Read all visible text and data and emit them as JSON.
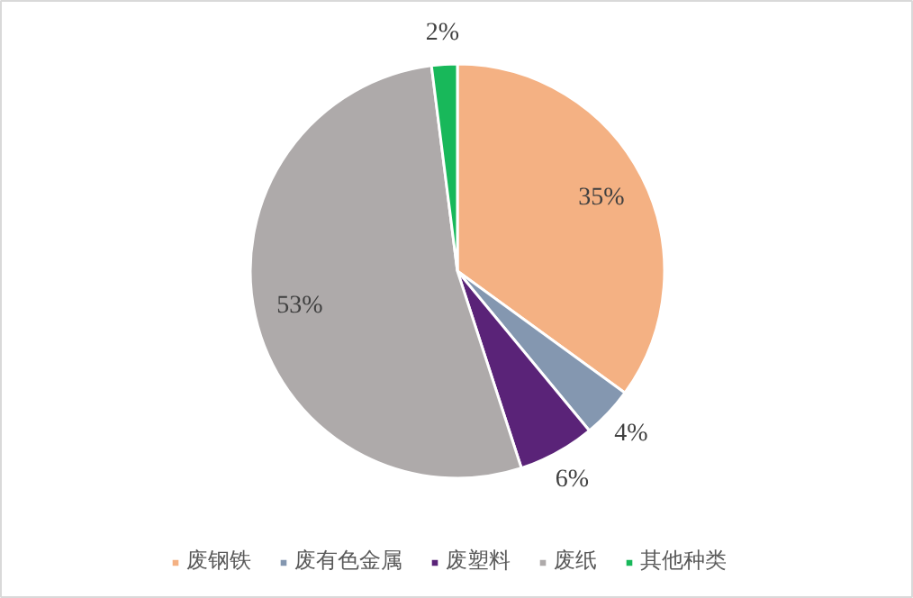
{
  "chart_data": {
    "type": "pie",
    "categories": [
      "废钢铁",
      "废有色金属",
      "废塑料",
      "废纸",
      "其他种类"
    ],
    "values": [
      35,
      4,
      6,
      53,
      2
    ],
    "colors": [
      "#f4b183",
      "#8497b0",
      "#5a2378",
      "#aeaaaa",
      "#18b85a"
    ],
    "value_labels": [
      "35%",
      "4%",
      "6%",
      "53%",
      "2%"
    ],
    "legend": "bottom"
  }
}
